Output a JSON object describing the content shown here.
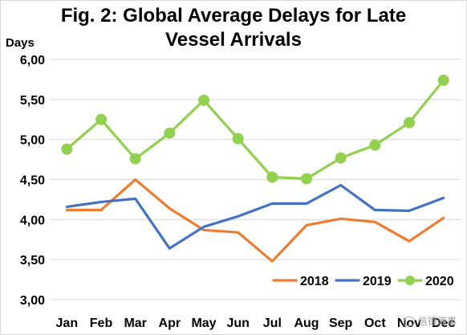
{
  "chart_data": {
    "type": "line",
    "title": "Fig. 2: Global Average Delays for Late Vessel Arrivals",
    "title_lines": [
      "Fig. 2: Global Average Delays for Late",
      "Vessel Arrivals"
    ],
    "ylabel": "Days",
    "xlabel": "",
    "categories": [
      "Jan",
      "Feb",
      "Mar",
      "Apr",
      "May",
      "Jun",
      "Jul",
      "Aug",
      "Sep",
      "Oct",
      "Nov",
      "Dec"
    ],
    "ylim": [
      3.0,
      6.0
    ],
    "yticks": [
      3.0,
      3.5,
      4.0,
      4.5,
      5.0,
      5.5,
      6.0
    ],
    "ytick_labels": [
      "3,00",
      "3,50",
      "4,00",
      "4,50",
      "5,00",
      "5,50",
      "6,00"
    ],
    "grid": true,
    "legend_position": "bottom-right",
    "series": [
      {
        "name": "2018",
        "color": "#ED7D31",
        "markers": false,
        "values": [
          4.12,
          4.12,
          4.5,
          4.14,
          3.87,
          3.84,
          3.48,
          3.93,
          4.01,
          3.97,
          3.73,
          4.02
        ]
      },
      {
        "name": "2019",
        "color": "#4472C4",
        "markers": false,
        "values": [
          4.16,
          4.22,
          4.26,
          3.64,
          3.91,
          4.04,
          4.2,
          4.2,
          4.43,
          4.12,
          4.11,
          4.27
        ]
      },
      {
        "name": "2020",
        "color": "#92D050",
        "markers": true,
        "values": [
          4.88,
          5.25,
          4.76,
          5.08,
          5.49,
          5.01,
          4.53,
          4.51,
          4.77,
          4.93,
          5.21,
          5.74
        ]
      }
    ]
  },
  "watermark": {
    "text": "信德海事",
    "icon": "chat-bubble-icon"
  }
}
